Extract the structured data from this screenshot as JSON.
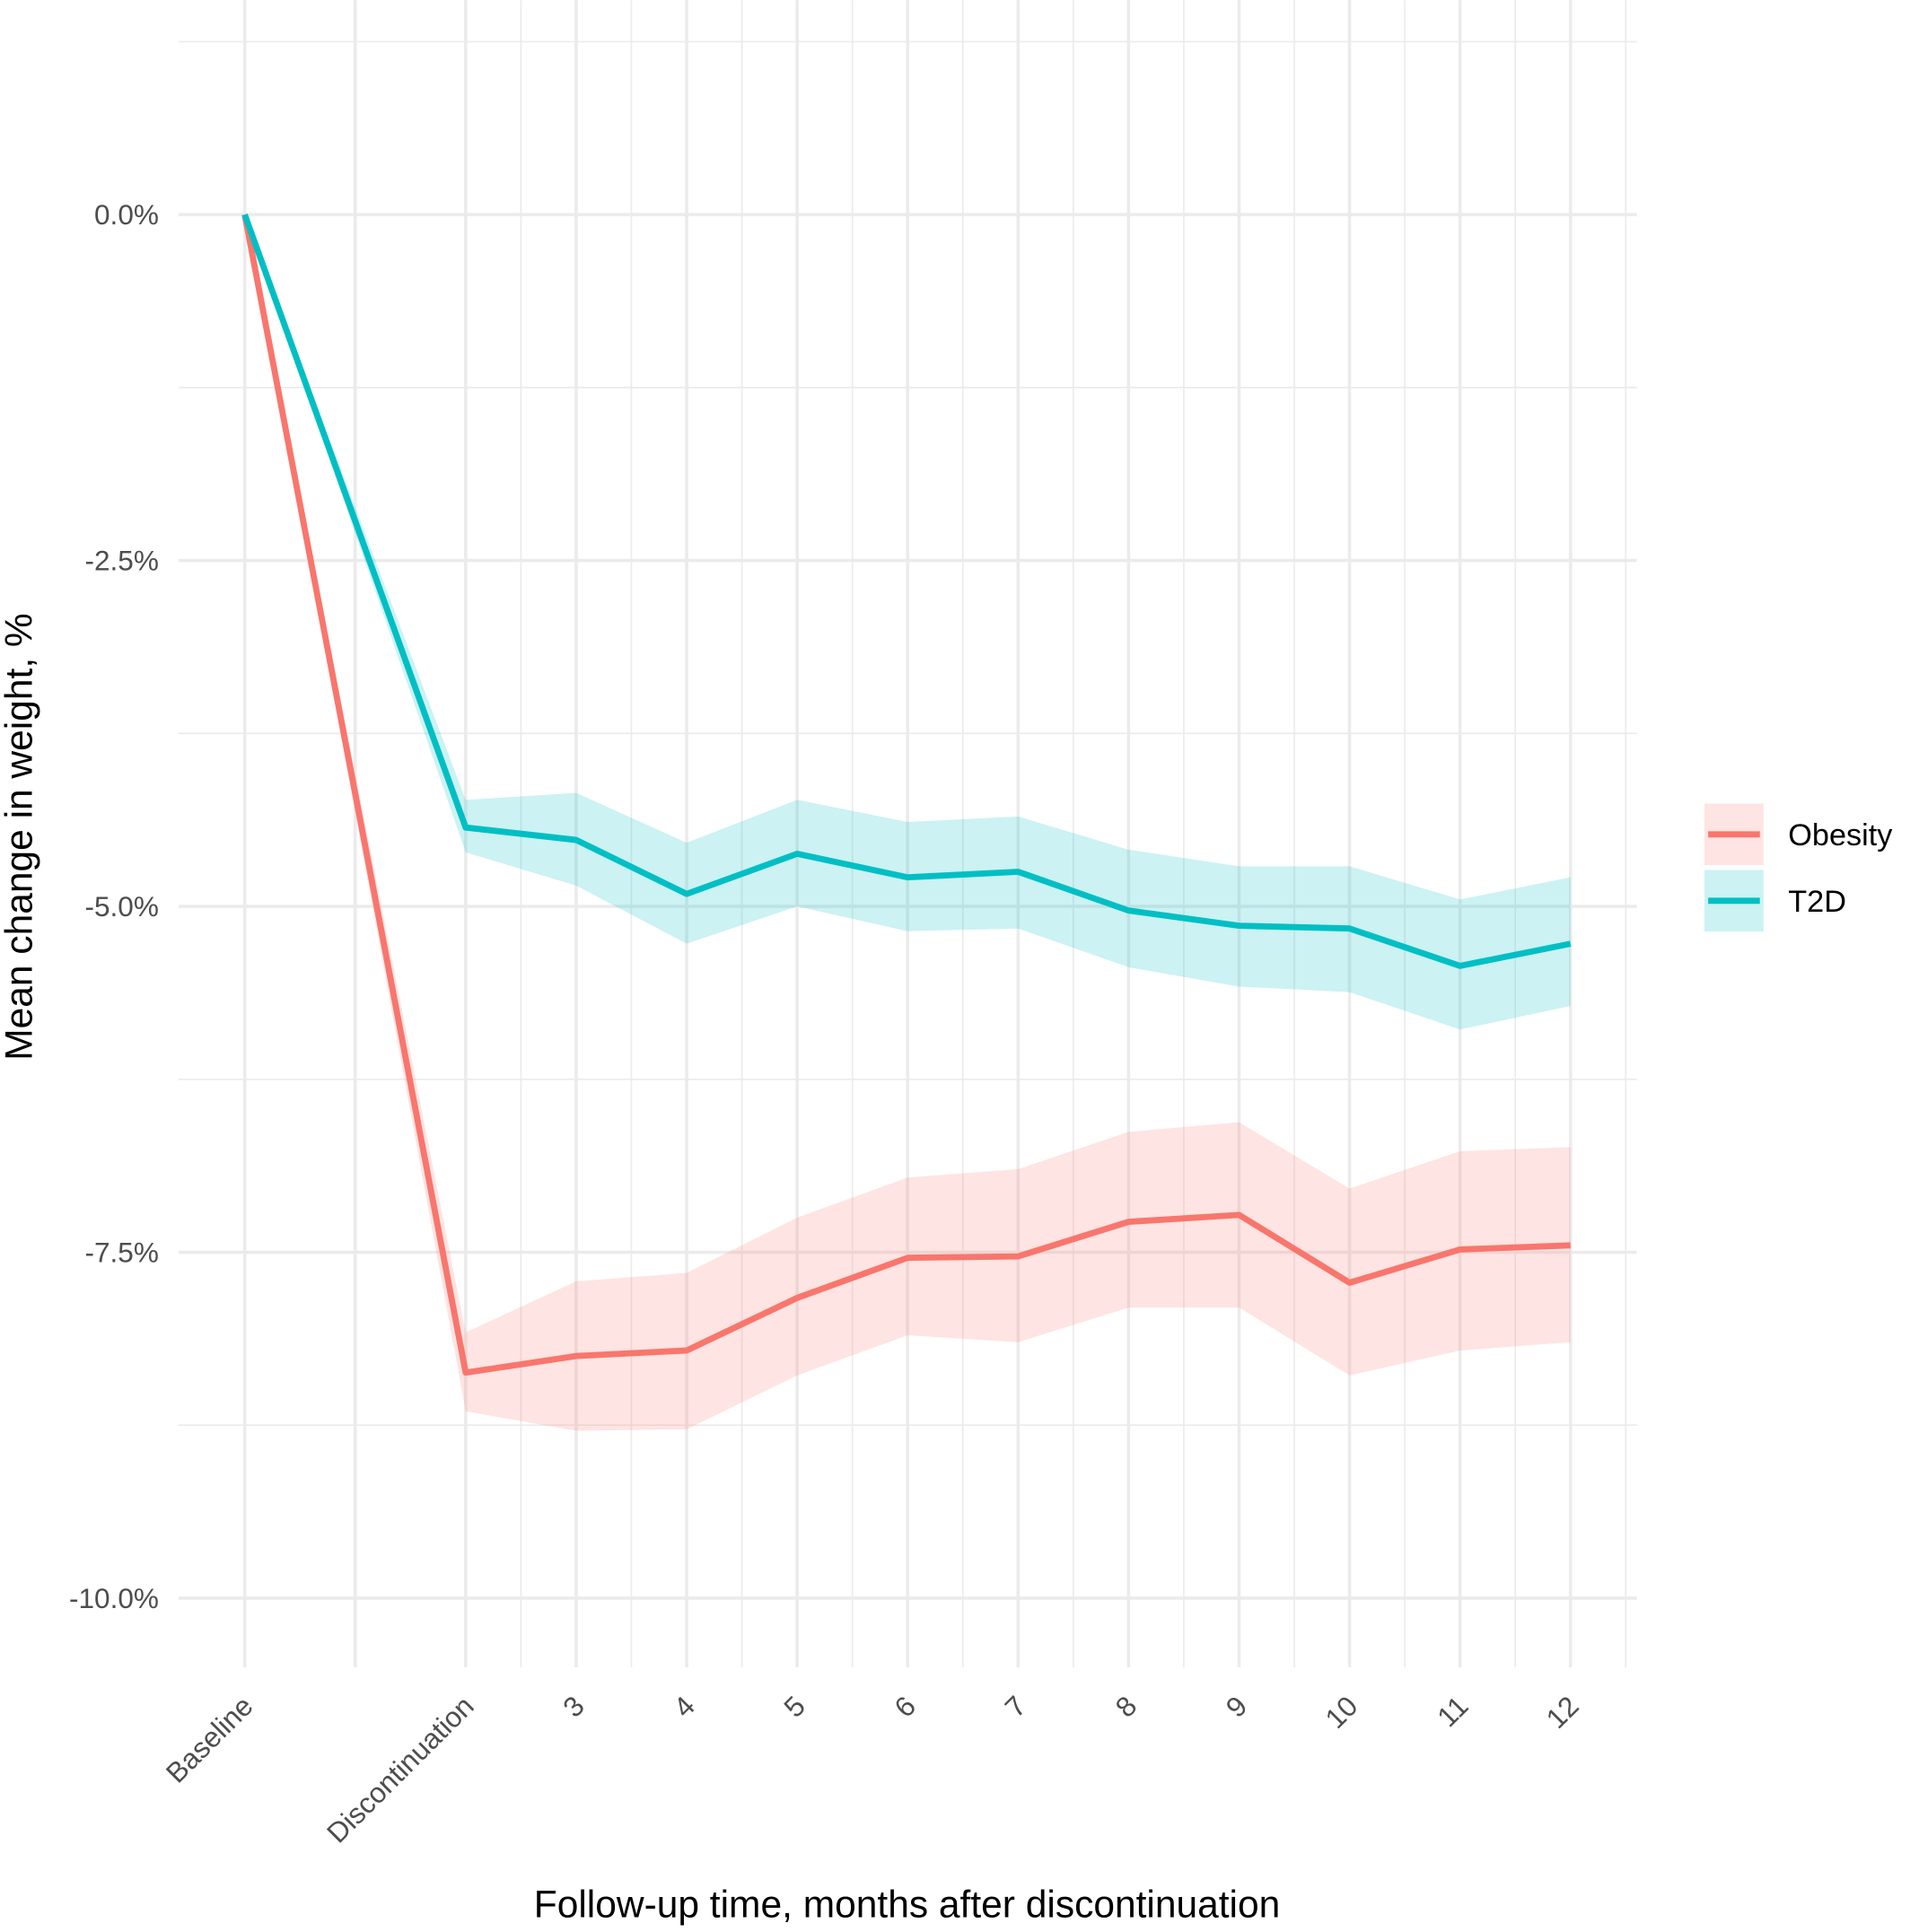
{
  "chart_data": {
    "type": "line",
    "title": "",
    "xlabel": "Follow-up time, months after discontinuation",
    "ylabel": "Mean change in weight, %",
    "x": [
      0,
      2,
      3,
      4,
      5,
      6,
      7,
      8,
      9,
      10,
      11,
      12
    ],
    "x_tick_labels": [
      "Baseline",
      "Discontinuation",
      "3",
      "4",
      "5",
      "6",
      "7",
      "8",
      "9",
      "10",
      "11",
      "12"
    ],
    "xlim": [
      -0.6,
      12.6
    ],
    "ylim": [
      -10.5,
      1.55
    ],
    "y_ticks": [
      0,
      -2.5,
      -5,
      -7.5,
      -10
    ],
    "y_tick_labels": [
      "0.0%",
      "-2.5%",
      "-5.0%",
      "-7.5%",
      "-10.0%"
    ],
    "grid": true,
    "legend_position": "right",
    "series": [
      {
        "name": "Obesity",
        "color": "#F8766D",
        "values": [
          0,
          -8.37,
          -8.25,
          -8.21,
          -7.83,
          -7.54,
          -7.53,
          -7.28,
          -7.23,
          -7.72,
          -7.48,
          -7.45
        ],
        "ci_upper": [
          0,
          -8.08,
          -7.71,
          -7.65,
          -7.25,
          -6.96,
          -6.9,
          -6.63,
          -6.56,
          -7.04,
          -6.77,
          -6.74
        ],
        "ci_lower": [
          0,
          -8.65,
          -8.79,
          -8.78,
          -8.39,
          -8.1,
          -8.15,
          -7.9,
          -7.9,
          -8.39,
          -8.21,
          -8.15
        ]
      },
      {
        "name": "T2D",
        "color": "#00BFC4",
        "values": [
          0,
          -4.43,
          -4.52,
          -4.91,
          -4.62,
          -4.79,
          -4.75,
          -5.03,
          -5.14,
          -5.16,
          -5.43,
          -5.27
        ],
        "ci_upper": [
          0,
          -4.23,
          -4.18,
          -4.54,
          -4.23,
          -4.39,
          -4.35,
          -4.59,
          -4.71,
          -4.71,
          -4.95,
          -4.79
        ],
        "ci_lower": [
          0,
          -4.61,
          -4.85,
          -5.27,
          -5.0,
          -5.18,
          -5.16,
          -5.44,
          -5.58,
          -5.62,
          -5.89,
          -5.72
        ]
      }
    ]
  }
}
